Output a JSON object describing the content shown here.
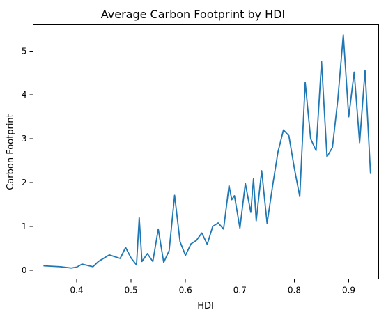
{
  "chart_data": {
    "type": "line",
    "title": "Average Carbon Footprint by HDI",
    "xlabel": "HDI",
    "ylabel": "Carbon Footprint",
    "xlim": [
      0.32,
      0.955
    ],
    "ylim": [
      -0.2,
      5.6
    ],
    "grid": false,
    "legend": "none",
    "xticks": [
      0.4,
      0.5,
      0.6,
      0.7,
      0.8,
      0.9
    ],
    "xtick_labels": [
      "0.4",
      "0.5",
      "0.6",
      "0.7",
      "0.8",
      "0.9"
    ],
    "yticks": [
      0,
      1,
      2,
      3,
      4,
      5
    ],
    "ytick_labels": [
      "0",
      "1",
      "2",
      "3",
      "4",
      "5"
    ],
    "series": [
      {
        "color": "#1f77b4",
        "x": [
          0.34,
          0.37,
          0.39,
          0.4,
          0.41,
          0.43,
          0.44,
          0.46,
          0.48,
          0.49,
          0.5,
          0.51,
          0.515,
          0.52,
          0.53,
          0.54,
          0.55,
          0.56,
          0.57,
          0.58,
          0.59,
          0.6,
          0.61,
          0.62,
          0.63,
          0.64,
          0.65,
          0.66,
          0.67,
          0.68,
          0.685,
          0.69,
          0.7,
          0.71,
          0.72,
          0.725,
          0.73,
          0.74,
          0.75,
          0.76,
          0.77,
          0.78,
          0.79,
          0.8,
          0.81,
          0.82,
          0.83,
          0.84,
          0.85,
          0.86,
          0.87,
          0.88,
          0.89,
          0.9,
          0.91,
          0.92,
          0.93,
          0.94
        ],
        "y": [
          0.1,
          0.08,
          0.05,
          0.07,
          0.14,
          0.08,
          0.2,
          0.35,
          0.27,
          0.52,
          0.28,
          0.12,
          1.2,
          0.2,
          0.38,
          0.2,
          0.94,
          0.18,
          0.45,
          1.71,
          0.65,
          0.34,
          0.6,
          0.68,
          0.85,
          0.59,
          1.0,
          1.08,
          0.94,
          1.93,
          1.61,
          1.7,
          0.96,
          1.98,
          1.32,
          2.09,
          1.13,
          2.27,
          1.07,
          1.92,
          2.7,
          3.2,
          3.07,
          2.33,
          1.68,
          4.29,
          3.0,
          2.73,
          4.76,
          2.59,
          2.8,
          3.9,
          5.37,
          3.5,
          4.52,
          2.91,
          4.56,
          2.21
        ]
      }
    ]
  }
}
